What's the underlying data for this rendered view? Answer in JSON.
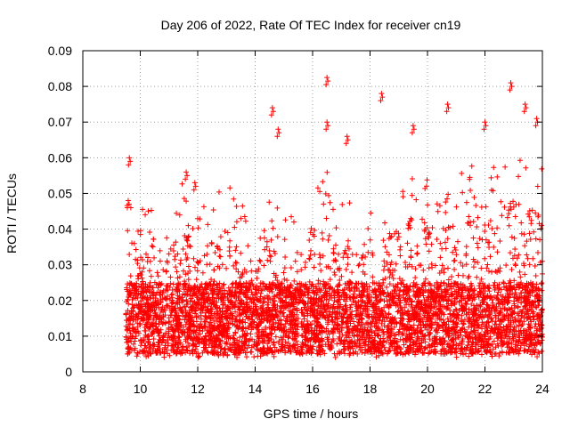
{
  "chart_data": {
    "type": "scatter",
    "title": "Day 206 of 2022, Rate Of TEC Index for receiver cn19",
    "xlabel": "GPS time / hours",
    "ylabel": "ROTI / TECUs",
    "xlim": [
      8,
      24
    ],
    "ylim": [
      0,
      0.09
    ],
    "xticks": [
      8,
      10,
      12,
      14,
      16,
      18,
      20,
      22,
      24
    ],
    "yticks": [
      0,
      0.01,
      0.02,
      0.03,
      0.04,
      0.05,
      0.06,
      0.07,
      0.08,
      0.09
    ],
    "xtick_labels": [
      "8",
      "10",
      "12",
      "14",
      "16",
      "18",
      "20",
      "22",
      "24"
    ],
    "ytick_labels": [
      "0",
      "0.01",
      "0.02",
      "0.03",
      "0.04",
      "0.05",
      "0.06",
      "0.07",
      "0.08",
      "0.09"
    ],
    "grid": true,
    "marker": "+",
    "color": "#ff0000",
    "series": [
      {
        "name": "ROTI",
        "x_start": 9.5,
        "x_end": 24.0,
        "typical_range": [
          0.005,
          0.025
        ],
        "notable_points": [
          {
            "x": 9.62,
            "y": 0.06
          },
          {
            "x": 9.58,
            "y": 0.048
          },
          {
            "x": 11.6,
            "y": 0.056
          },
          {
            "x": 11.9,
            "y": 0.053
          },
          {
            "x": 14.6,
            "y": 0.074
          },
          {
            "x": 14.8,
            "y": 0.068
          },
          {
            "x": 16.5,
            "y": 0.0825
          },
          {
            "x": 16.5,
            "y": 0.07
          },
          {
            "x": 17.2,
            "y": 0.066
          },
          {
            "x": 18.4,
            "y": 0.078
          },
          {
            "x": 19.5,
            "y": 0.069
          },
          {
            "x": 20.7,
            "y": 0.075
          },
          {
            "x": 22.0,
            "y": 0.07
          },
          {
            "x": 22.9,
            "y": 0.081
          },
          {
            "x": 23.4,
            "y": 0.075
          },
          {
            "x": 23.8,
            "y": 0.071
          }
        ]
      }
    ]
  }
}
